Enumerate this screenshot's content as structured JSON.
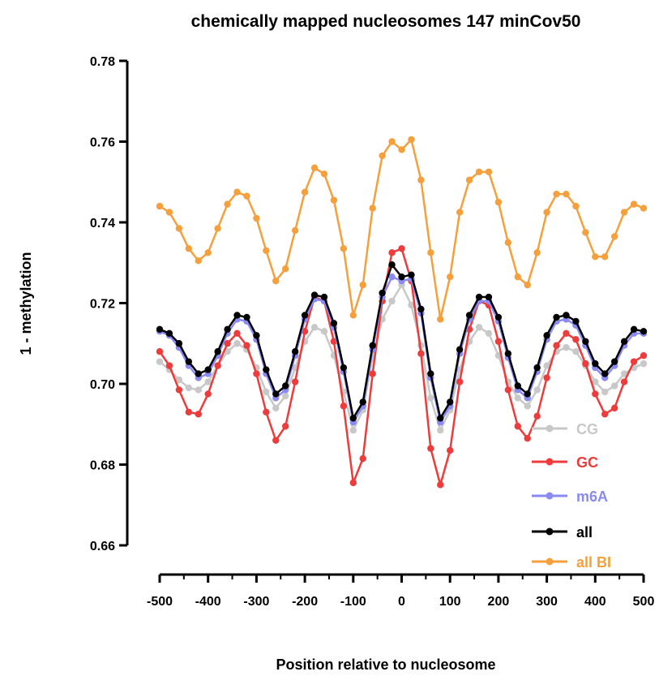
{
  "chart_data": {
    "type": "line",
    "title": "chemically mapped nucleosomes 147 minCov50",
    "xlabel": "Position relative to nucleosome",
    "ylabel": "1 - methylation",
    "xlim": [
      -500,
      500
    ],
    "ylim": [
      0.66,
      0.78
    ],
    "xticks": [
      "-500",
      "-400",
      "-300",
      "-200",
      "-100",
      "0",
      "100",
      "200",
      "300",
      "400",
      "500"
    ],
    "yticks": [
      "0.66",
      "0.68",
      "0.70",
      "0.72",
      "0.74",
      "0.76",
      "0.78"
    ],
    "grid": false,
    "legend_position": "bottom-right",
    "x": [
      -500,
      -480,
      -460,
      -440,
      -420,
      -400,
      -380,
      -360,
      -340,
      -320,
      -300,
      -280,
      -260,
      -240,
      -220,
      -200,
      -180,
      -160,
      -140,
      -120,
      -100,
      -80,
      -60,
      -40,
      -20,
      0,
      20,
      40,
      60,
      80,
      100,
      120,
      140,
      160,
      180,
      200,
      220,
      240,
      260,
      280,
      300,
      320,
      340,
      360,
      380,
      400,
      420,
      440,
      460,
      480,
      500
    ],
    "series": [
      {
        "name": "CG",
        "color": "#c8c8c8",
        "values": [
          0.7055,
          0.7035,
          0.701,
          0.699,
          0.6985,
          0.7005,
          0.7045,
          0.708,
          0.71,
          0.7085,
          0.704,
          0.698,
          0.694,
          0.697,
          0.704,
          0.7105,
          0.714,
          0.713,
          0.707,
          0.698,
          0.6885,
          0.6935,
          0.7065,
          0.716,
          0.7205,
          0.7245,
          0.7195,
          0.7095,
          0.6965,
          0.6885,
          0.6935,
          0.7035,
          0.7105,
          0.714,
          0.7125,
          0.707,
          0.7005,
          0.6965,
          0.6945,
          0.6985,
          0.7045,
          0.708,
          0.709,
          0.708,
          0.7045,
          0.7005,
          0.698,
          0.6995,
          0.7025,
          0.704,
          0.705
        ]
      },
      {
        "name": "GC",
        "color": "#ee3b3b",
        "values": [
          0.708,
          0.7045,
          0.6985,
          0.693,
          0.6925,
          0.6975,
          0.7045,
          0.71,
          0.7125,
          0.7095,
          0.7025,
          0.693,
          0.686,
          0.6895,
          0.7005,
          0.713,
          0.7215,
          0.7205,
          0.7105,
          0.6945,
          0.6755,
          0.6815,
          0.7025,
          0.7205,
          0.7325,
          0.7335,
          0.7255,
          0.7075,
          0.684,
          0.675,
          0.6835,
          0.7005,
          0.7135,
          0.7205,
          0.7195,
          0.7105,
          0.6985,
          0.6895,
          0.6865,
          0.692,
          0.7015,
          0.7095,
          0.7125,
          0.711,
          0.705,
          0.6975,
          0.6925,
          0.694,
          0.7005,
          0.7055,
          0.707
        ]
      },
      {
        "name": "m6A",
        "color": "#8a8af2",
        "values": [
          0.713,
          0.712,
          0.709,
          0.7045,
          0.7015,
          0.7025,
          0.707,
          0.7125,
          0.716,
          0.7155,
          0.711,
          0.7025,
          0.6965,
          0.6985,
          0.707,
          0.716,
          0.721,
          0.7205,
          0.714,
          0.703,
          0.6905,
          0.6945,
          0.7085,
          0.7215,
          0.7265,
          0.7255,
          0.726,
          0.7175,
          0.7015,
          0.6905,
          0.6945,
          0.7075,
          0.716,
          0.7205,
          0.7205,
          0.7155,
          0.7065,
          0.6985,
          0.6965,
          0.703,
          0.711,
          0.7155,
          0.716,
          0.7145,
          0.7095,
          0.704,
          0.7015,
          0.7045,
          0.7095,
          0.7125,
          0.7125
        ]
      },
      {
        "name": "all",
        "color": "#000000",
        "values": [
          0.7135,
          0.7125,
          0.71,
          0.7055,
          0.7025,
          0.7035,
          0.708,
          0.7135,
          0.717,
          0.7165,
          0.712,
          0.7035,
          0.6975,
          0.6995,
          0.708,
          0.717,
          0.722,
          0.7215,
          0.715,
          0.704,
          0.6915,
          0.6955,
          0.7095,
          0.7225,
          0.7295,
          0.7265,
          0.727,
          0.7185,
          0.7025,
          0.6915,
          0.6955,
          0.7085,
          0.717,
          0.7215,
          0.7215,
          0.7165,
          0.7075,
          0.6995,
          0.6975,
          0.704,
          0.712,
          0.7165,
          0.717,
          0.7155,
          0.7105,
          0.705,
          0.7025,
          0.7055,
          0.7105,
          0.7135,
          0.713
        ]
      },
      {
        "name": "all BI",
        "color": "#f5a03c",
        "values": [
          0.744,
          0.7425,
          0.7385,
          0.7335,
          0.7305,
          0.7325,
          0.7385,
          0.7445,
          0.7475,
          0.7465,
          0.741,
          0.733,
          0.7255,
          0.7285,
          0.738,
          0.7475,
          0.7535,
          0.752,
          0.7455,
          0.7335,
          0.717,
          0.7245,
          0.7435,
          0.7565,
          0.76,
          0.758,
          0.7605,
          0.7505,
          0.7325,
          0.716,
          0.7265,
          0.7425,
          0.7505,
          0.7525,
          0.7525,
          0.745,
          0.735,
          0.7265,
          0.7245,
          0.7325,
          0.7425,
          0.747,
          0.747,
          0.744,
          0.7375,
          0.7315,
          0.7315,
          0.7365,
          0.7425,
          0.7445,
          0.7435
        ]
      }
    ]
  }
}
